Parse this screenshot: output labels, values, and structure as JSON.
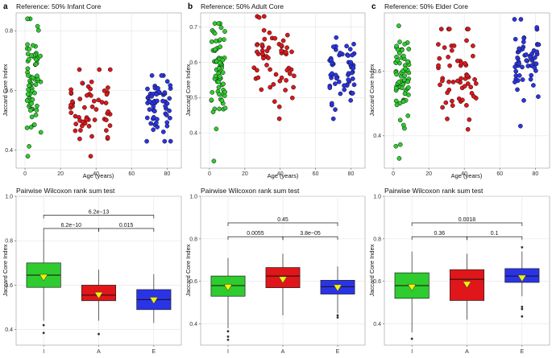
{
  "figure": {
    "colors": {
      "infant": "#2ecc2e",
      "adult": "#e0161a",
      "elder": "#2a34e6",
      "mean_marker": "#f2f20a"
    },
    "scatter_ylabel": "Jaccard Core Index",
    "scatter_xlabel": "Age (years)",
    "box_ylabel": "Jaccard Core Index",
    "box_title": "Pairwise Wilcoxon rank sum test"
  },
  "chart_data": [
    {
      "id": "a-scatter",
      "type": "scatter",
      "letter": "a",
      "title": "Reference: 50% Infant Core",
      "xlabel": "Age (years)",
      "ylabel": "Jaccard Core Index",
      "xlim": [
        -5,
        88
      ],
      "ylim": [
        0.34,
        0.86
      ],
      "xticks": [
        "0",
        "20",
        "40",
        "60",
        "80"
      ],
      "yticks": [
        "0.4",
        "0.6",
        "0.8"
      ],
      "groups": [
        {
          "name": "Infant",
          "color": "#2ecc2e",
          "x_range": [
            1,
            9
          ],
          "n": 70,
          "mean": 0.64,
          "sd": 0.09,
          "min": 0.38,
          "max": 0.84,
          "seed": 11
        },
        {
          "name": "Adult",
          "color": "#e0161a",
          "x_range": [
            25,
            48
          ],
          "n": 58,
          "mean": 0.56,
          "sd": 0.055,
          "min": 0.38,
          "max": 0.67,
          "seed": 23
        },
        {
          "name": "Elder",
          "color": "#2a34e6",
          "x_range": [
            68,
            82
          ],
          "n": 60,
          "mean": 0.535,
          "sd": 0.055,
          "min": 0.43,
          "max": 0.65,
          "seed": 37
        }
      ]
    },
    {
      "id": "b-scatter",
      "type": "scatter",
      "letter": "b",
      "title": "Reference: 50% Adult Core",
      "xlabel": "Age (years)",
      "ylabel": "Jaccard Core Index",
      "xlim": [
        -5,
        88
      ],
      "ylim": [
        0.3,
        0.74
      ],
      "xticks": [
        "0",
        "20",
        "40",
        "60",
        "80"
      ],
      "yticks": [
        "0.4",
        "0.5",
        "0.6",
        "0.7"
      ],
      "groups": [
        {
          "name": "Infant",
          "color": "#2ecc2e",
          "x_range": [
            1,
            9
          ],
          "n": 70,
          "mean": 0.575,
          "sd": 0.07,
          "min": 0.32,
          "max": 0.71,
          "seed": 41
        },
        {
          "name": "Adult",
          "color": "#e0161a",
          "x_range": [
            25,
            48
          ],
          "n": 58,
          "mean": 0.62,
          "sd": 0.055,
          "min": 0.44,
          "max": 0.73,
          "seed": 53
        },
        {
          "name": "Elder",
          "color": "#2a34e6",
          "x_range": [
            68,
            82
          ],
          "n": 60,
          "mean": 0.57,
          "sd": 0.045,
          "min": 0.44,
          "max": 0.67,
          "seed": 67
        }
      ]
    },
    {
      "id": "c-scatter",
      "type": "scatter",
      "letter": "c",
      "title": "Reference: 50% Elder Core",
      "xlabel": "Age (years)",
      "ylabel": "Jaccard Core Index",
      "xlim": [
        -5,
        88
      ],
      "ylim": [
        0.3,
        0.78
      ],
      "xticks": [
        "0",
        "20",
        "40",
        "60",
        "80"
      ],
      "yticks": [
        "0.4",
        "0.6"
      ],
      "groups": [
        {
          "name": "Infant",
          "color": "#2ecc2e",
          "x_range": [
            1,
            9
          ],
          "n": 70,
          "mean": 0.575,
          "sd": 0.08,
          "min": 0.33,
          "max": 0.74,
          "seed": 71
        },
        {
          "name": "Adult",
          "color": "#e0161a",
          "x_range": [
            25,
            48
          ],
          "n": 58,
          "mean": 0.585,
          "sd": 0.07,
          "min": 0.42,
          "max": 0.73,
          "seed": 83
        },
        {
          "name": "Elder",
          "color": "#2a34e6",
          "x_range": [
            68,
            82
          ],
          "n": 60,
          "mean": 0.62,
          "sd": 0.055,
          "min": 0.43,
          "max": 0.76,
          "seed": 97
        }
      ]
    },
    {
      "id": "a-box",
      "type": "box",
      "title": "Pairwise Wilcoxon rank sum test",
      "xlabel": "",
      "ylabel": "Jaccard Core Index",
      "ylim": [
        0.33,
        1.0
      ],
      "yticks": [
        "0.4",
        "0.6",
        "0.8",
        "1.0"
      ],
      "categories": [
        "I",
        "A",
        "E"
      ],
      "boxes": [
        {
          "q1": 0.59,
          "median": 0.645,
          "q3": 0.7,
          "wlo": 0.44,
          "whi": 0.84,
          "mean": 0.635,
          "outliers": [
            0.42,
            0.385
          ]
        },
        {
          "q1": 0.53,
          "median": 0.555,
          "q3": 0.6,
          "wlo": 0.44,
          "whi": 0.67,
          "mean": 0.555,
          "outliers": [
            0.38
          ]
        },
        {
          "q1": 0.49,
          "median": 0.535,
          "q3": 0.58,
          "wlo": 0.43,
          "whi": 0.65,
          "mean": 0.532,
          "outliers": []
        }
      ],
      "comparisons": [
        {
          "pair": [
            0,
            2
          ],
          "label": "6.2e−13",
          "y": 0.915
        },
        {
          "pair": [
            0,
            1
          ],
          "label": "6.2e−10",
          "y": 0.855
        },
        {
          "pair": [
            1,
            2
          ],
          "label": "0.015",
          "y": 0.855
        }
      ]
    },
    {
      "id": "b-box",
      "type": "box",
      "title": "Pairwise Wilcoxon rank sum test",
      "xlabel": "",
      "ylabel": "Jaccard Core Index",
      "ylim": [
        0.3,
        1.0
      ],
      "yticks": [
        "0.4",
        "0.6",
        "0.8",
        "1.0"
      ],
      "categories": [
        "I",
        "A",
        "E"
      ],
      "boxes": [
        {
          "q1": 0.53,
          "median": 0.58,
          "q3": 0.625,
          "wlo": 0.38,
          "whi": 0.71,
          "mean": 0.572,
          "outliers": [
            0.365,
            0.34,
            0.325
          ]
        },
        {
          "q1": 0.57,
          "median": 0.625,
          "q3": 0.665,
          "wlo": 0.44,
          "whi": 0.73,
          "mean": 0.608,
          "outliers": []
        },
        {
          "q1": 0.54,
          "median": 0.575,
          "q3": 0.605,
          "wlo": 0.45,
          "whi": 0.67,
          "mean": 0.57,
          "outliers": [
            0.44,
            0.43
          ]
        }
      ],
      "comparisons": [
        {
          "pair": [
            0,
            2
          ],
          "label": "0.45",
          "y": 0.875
        },
        {
          "pair": [
            0,
            1
          ],
          "label": "0.0055",
          "y": 0.81
        },
        {
          "pair": [
            1,
            2
          ],
          "label": "3.8e−05",
          "y": 0.81
        }
      ]
    },
    {
      "id": "c-box",
      "type": "box",
      "title": "Pairwise Wilcoxon rank sum test",
      "xlabel": "",
      "ylabel": "Jaccard Core Index",
      "ylim": [
        0.3,
        1.0
      ],
      "yticks": [
        "0.4",
        "0.6",
        "0.8",
        "1.0"
      ],
      "categories": [
        "I",
        "A",
        "E"
      ],
      "boxes": [
        {
          "q1": 0.52,
          "median": 0.58,
          "q3": 0.64,
          "wlo": 0.36,
          "whi": 0.74,
          "mean": 0.572,
          "outliers": [
            0.33
          ]
        },
        {
          "q1": 0.51,
          "median": 0.61,
          "q3": 0.655,
          "wlo": 0.42,
          "whi": 0.73,
          "mean": 0.585,
          "outliers": []
        },
        {
          "q1": 0.595,
          "median": 0.625,
          "q3": 0.66,
          "wlo": 0.53,
          "whi": 0.74,
          "mean": 0.615,
          "outliers": [
            0.76,
            0.48,
            0.47,
            0.435
          ]
        }
      ],
      "comparisons": [
        {
          "pair": [
            0,
            2
          ],
          "label": "0.0018",
          "y": 0.875
        },
        {
          "pair": [
            0,
            1
          ],
          "label": "0.36",
          "y": 0.81
        },
        {
          "pair": [
            1,
            2
          ],
          "label": "0.1",
          "y": 0.81
        }
      ]
    }
  ]
}
